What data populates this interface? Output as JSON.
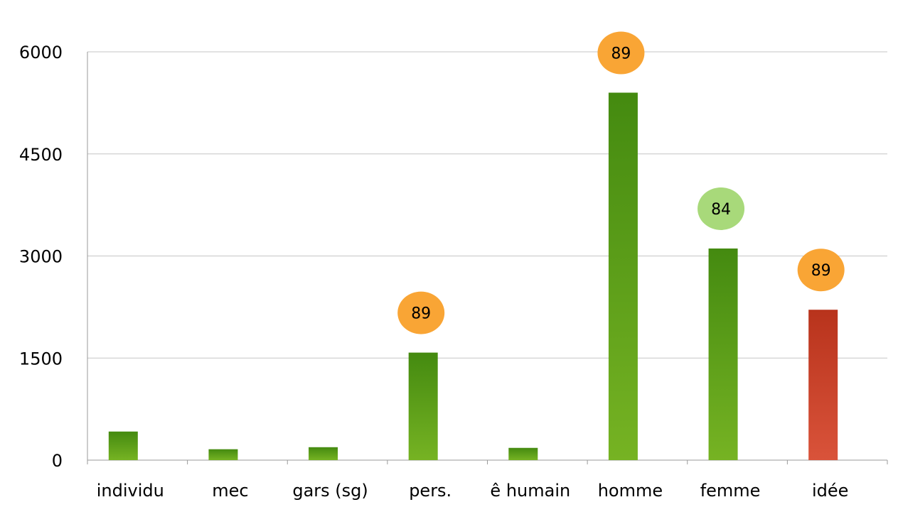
{
  "chart_data": {
    "type": "bar",
    "categories": [
      "individu",
      "mec",
      "gars (sg)",
      "pers.",
      "ê humain",
      "homme",
      "femme",
      "idée"
    ],
    "values": [
      420,
      160,
      190,
      1580,
      180,
      5400,
      3110,
      2210
    ],
    "bar_colors": [
      "green",
      "green",
      "green",
      "green",
      "green",
      "green",
      "green",
      "red"
    ],
    "annotations": [
      {
        "category": "pers.",
        "text": "89",
        "color": "#f9a535"
      },
      {
        "category": "homme",
        "text": "89",
        "color": "#f9a535"
      },
      {
        "category": "femme",
        "text": "84",
        "color": "#a8d97a"
      },
      {
        "category": "idée",
        "text": "89",
        "color": "#f9a535"
      }
    ],
    "yticks": [
      "0",
      "1500",
      "3000",
      "4500",
      "6000"
    ],
    "ylim": [
      0,
      6000
    ],
    "title": "",
    "xlabel": "",
    "ylabel": "",
    "grid": true
  },
  "colors": {
    "green_top": "#448a10",
    "green_bottom": "#76b323",
    "red_top": "#b8331c",
    "red_bottom": "#d9533a",
    "grid": "#c6c6c6",
    "axis": "#9a9a9a"
  }
}
